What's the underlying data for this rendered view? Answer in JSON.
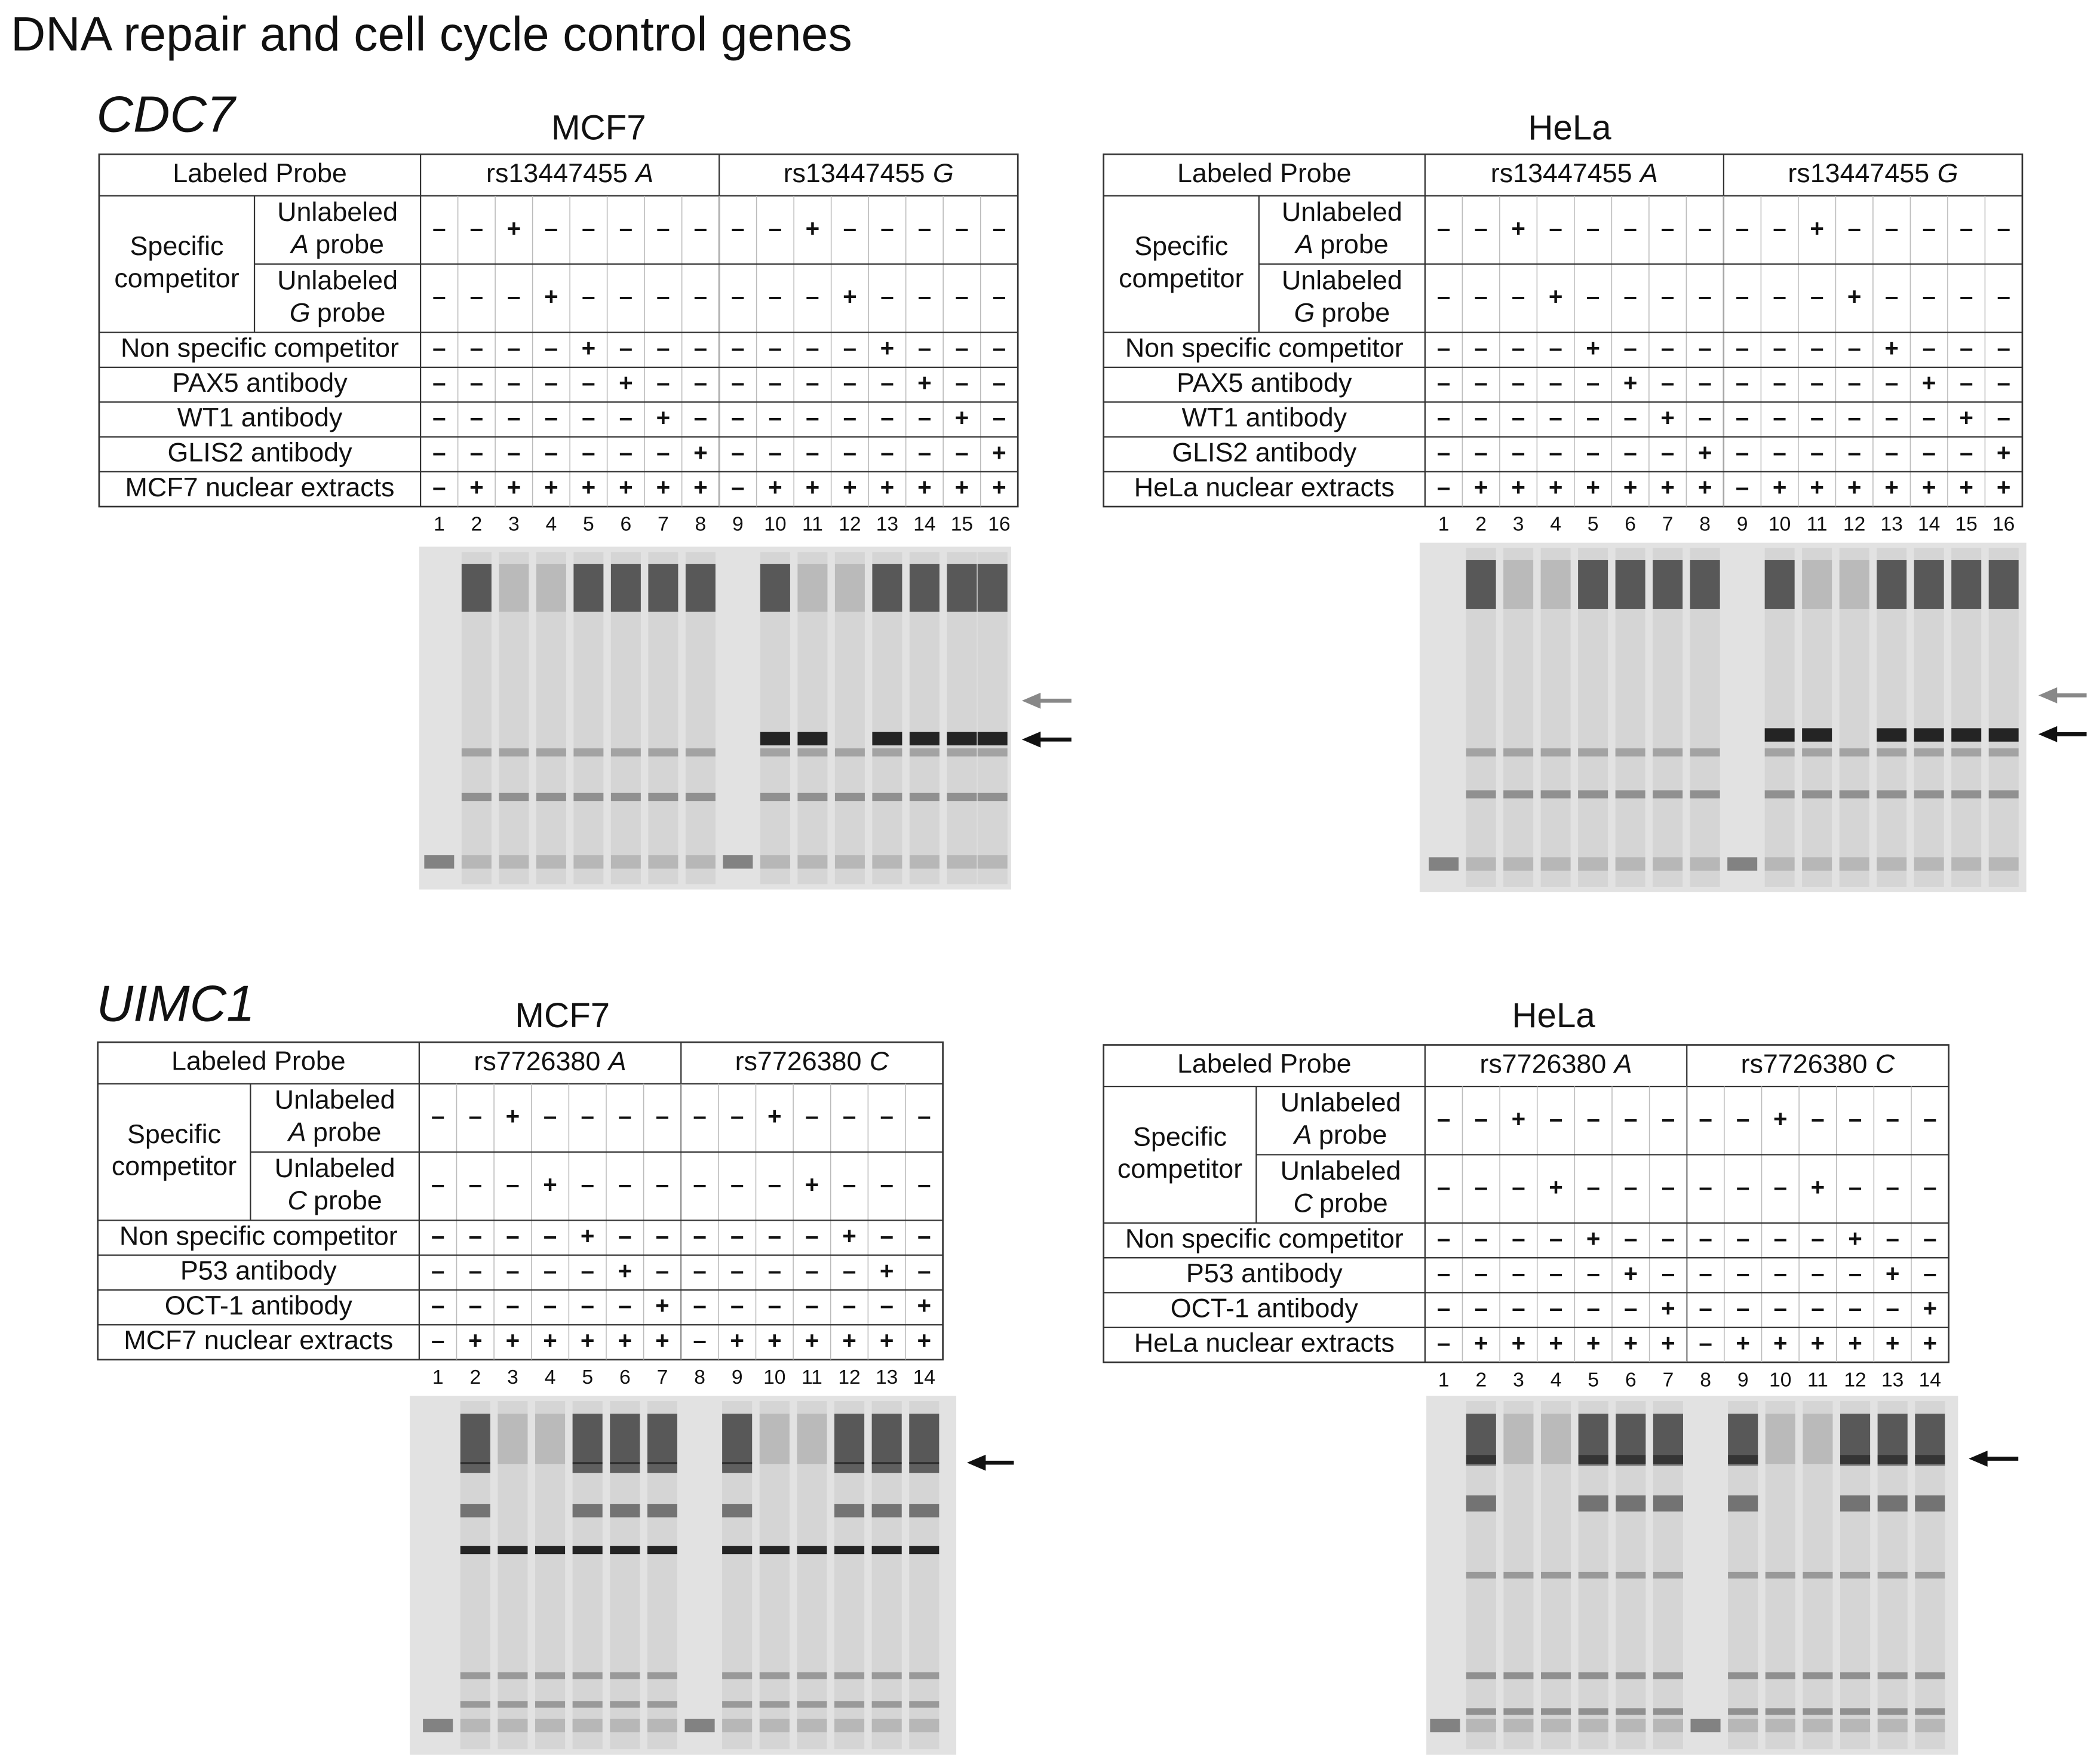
{
  "title": "DNA repair and cell cycle control genes",
  "genes": [
    {
      "name": "CDC7",
      "panels": [
        {
          "cell_line": "MCF7",
          "header": {
            "label": "Labeled Probe",
            "probes": [
              {
                "snp": "rs13447455",
                "allele": "A"
              },
              {
                "snp": "rs13447455",
                "allele": "G"
              }
            ]
          },
          "competitor_group": [
            "Specific",
            "competitor"
          ],
          "competitor_rows": [
            {
              "label": "Unlabeled",
              "allele": "A",
              "suffix": "probe",
              "signs": [
                "–",
                "–",
                "+",
                "–",
                "–",
                "–",
                "–",
                "–",
                "–",
                "–",
                "+",
                "–",
                "–",
                "–",
                "–",
                "–"
              ]
            },
            {
              "label": "Unlabeled",
              "allele": "G",
              "suffix": "probe",
              "signs": [
                "–",
                "–",
                "–",
                "+",
                "–",
                "–",
                "–",
                "–",
                "–",
                "–",
                "–",
                "+",
                "–",
                "–",
                "–",
                "–"
              ]
            }
          ],
          "rows": [
            {
              "label": "Non specific competitor",
              "signs": [
                "–",
                "–",
                "–",
                "–",
                "+",
                "–",
                "–",
                "–",
                "–",
                "–",
                "–",
                "–",
                "+",
                "–",
                "–",
                "–"
              ]
            },
            {
              "label": "PAX5 antibody",
              "signs": [
                "–",
                "–",
                "–",
                "–",
                "–",
                "+",
                "–",
                "–",
                "–",
                "–",
                "–",
                "–",
                "–",
                "+",
                "–",
                "–"
              ]
            },
            {
              "label": "WT1 antibody",
              "signs": [
                "–",
                "–",
                "–",
                "–",
                "–",
                "–",
                "+",
                "–",
                "–",
                "–",
                "–",
                "–",
                "–",
                "–",
                "+",
                "–"
              ]
            },
            {
              "label": "GLIS2 antibody",
              "signs": [
                "–",
                "–",
                "–",
                "–",
                "–",
                "–",
                "–",
                "+",
                "–",
                "–",
                "–",
                "–",
                "–",
                "–",
                "–",
                "+"
              ]
            },
            {
              "label": "MCF7 nuclear extracts",
              "signs": [
                "–",
                "+",
                "+",
                "+",
                "+",
                "+",
                "+",
                "+",
                "–",
                "+",
                "+",
                "+",
                "+",
                "+",
                "+",
                "+"
              ]
            }
          ],
          "lanes": [
            1,
            2,
            3,
            4,
            5,
            6,
            7,
            8,
            9,
            10,
            11,
            12,
            13,
            14,
            15,
            16
          ]
        },
        {
          "cell_line": "HeLa",
          "header": {
            "label": "Labeled Probe",
            "probes": [
              {
                "snp": "rs13447455",
                "allele": "A"
              },
              {
                "snp": "rs13447455",
                "allele": "G"
              }
            ]
          },
          "competitor_group": [
            "Specific",
            "competitor"
          ],
          "competitor_rows": [
            {
              "label": "Unlabeled",
              "allele": "A",
              "suffix": "probe",
              "signs": [
                "–",
                "–",
                "+",
                "–",
                "–",
                "–",
                "–",
                "–",
                "–",
                "–",
                "+",
                "–",
                "–",
                "–",
                "–",
                "–"
              ]
            },
            {
              "label": "Unlabeled",
              "allele": "G",
              "suffix": "probe",
              "signs": [
                "–",
                "–",
                "–",
                "+",
                "–",
                "–",
                "–",
                "–",
                "–",
                "–",
                "–",
                "+",
                "–",
                "–",
                "–",
                "–"
              ]
            }
          ],
          "rows": [
            {
              "label": "Non specific competitor",
              "signs": [
                "–",
                "–",
                "–",
                "–",
                "+",
                "–",
                "–",
                "–",
                "–",
                "–",
                "–",
                "–",
                "+",
                "–",
                "–",
                "–"
              ]
            },
            {
              "label": "PAX5 antibody",
              "signs": [
                "–",
                "–",
                "–",
                "–",
                "–",
                "+",
                "–",
                "–",
                "–",
                "–",
                "–",
                "–",
                "–",
                "+",
                "–",
                "–"
              ]
            },
            {
              "label": "WT1 antibody",
              "signs": [
                "–",
                "–",
                "–",
                "–",
                "–",
                "–",
                "+",
                "–",
                "–",
                "–",
                "–",
                "–",
                "–",
                "–",
                "+",
                "–"
              ]
            },
            {
              "label": "GLIS2 antibody",
              "signs": [
                "–",
                "–",
                "–",
                "–",
                "–",
                "–",
                "–",
                "+",
                "–",
                "–",
                "–",
                "–",
                "–",
                "–",
                "–",
                "+"
              ]
            },
            {
              "label": "HeLa nuclear extracts",
              "signs": [
                "–",
                "+",
                "+",
                "+",
                "+",
                "+",
                "+",
                "+",
                "–",
                "+",
                "+",
                "+",
                "+",
                "+",
                "+",
                "+"
              ]
            }
          ],
          "lanes": [
            1,
            2,
            3,
            4,
            5,
            6,
            7,
            8,
            9,
            10,
            11,
            12,
            13,
            14,
            15,
            16
          ]
        }
      ]
    },
    {
      "name": "UIMC1",
      "panels": [
        {
          "cell_line": "MCF7",
          "header": {
            "label": "Labeled Probe",
            "probes": [
              {
                "snp": "rs7726380",
                "allele": "A"
              },
              {
                "snp": "rs7726380",
                "allele": "C"
              }
            ]
          },
          "competitor_group": [
            "Specific",
            "competitor"
          ],
          "competitor_rows": [
            {
              "label": "Unlabeled",
              "allele": "A",
              "suffix": "probe",
              "signs": [
                "–",
                "–",
                "+",
                "–",
                "–",
                "–",
                "–",
                "–",
                "–",
                "+",
                "–",
                "–",
                "–",
                "–"
              ]
            },
            {
              "label": "Unlabeled",
              "allele": "C",
              "suffix": "probe",
              "signs": [
                "–",
                "–",
                "–",
                "+",
                "–",
                "–",
                "–",
                "–",
                "–",
                "–",
                "+",
                "–",
                "–",
                "–"
              ]
            }
          ],
          "rows": [
            {
              "label": "Non specific competitor",
              "signs": [
                "–",
                "–",
                "–",
                "–",
                "+",
                "–",
                "–",
                "–",
                "–",
                "–",
                "–",
                "+",
                "–",
                "–"
              ]
            },
            {
              "label": "P53 antibody",
              "signs": [
                "–",
                "–",
                "–",
                "–",
                "–",
                "+",
                "–",
                "–",
                "–",
                "–",
                "–",
                "–",
                "+",
                "–"
              ]
            },
            {
              "label": "OCT-1 antibody",
              "signs": [
                "–",
                "–",
                "–",
                "–",
                "–",
                "–",
                "+",
                "–",
                "–",
                "–",
                "–",
                "–",
                "–",
                "+"
              ]
            },
            {
              "label": "MCF7 nuclear extracts",
              "signs": [
                "–",
                "+",
                "+",
                "+",
                "+",
                "+",
                "+",
                "–",
                "+",
                "+",
                "+",
                "+",
                "+",
                "+"
              ]
            }
          ],
          "lanes": [
            1,
            2,
            3,
            4,
            5,
            6,
            7,
            8,
            9,
            10,
            11,
            12,
            13,
            14
          ]
        },
        {
          "cell_line": "HeLa",
          "header": {
            "label": "Labeled Probe",
            "probes": [
              {
                "snp": "rs7726380",
                "allele": "A"
              },
              {
                "snp": "rs7726380",
                "allele": "C"
              }
            ]
          },
          "competitor_group": [
            "Specific",
            "competitor"
          ],
          "competitor_rows": [
            {
              "label": "Unlabeled",
              "allele": "A",
              "suffix": "probe",
              "signs": [
                "–",
                "–",
                "+",
                "–",
                "–",
                "–",
                "–",
                "–",
                "–",
                "+",
                "–",
                "–",
                "–",
                "–"
              ]
            },
            {
              "label": "Unlabeled",
              "allele": "C",
              "suffix": "probe",
              "signs": [
                "–",
                "–",
                "–",
                "+",
                "–",
                "–",
                "–",
                "–",
                "–",
                "–",
                "+",
                "–",
                "–",
                "–"
              ]
            }
          ],
          "rows": [
            {
              "label": "Non specific competitor",
              "signs": [
                "–",
                "–",
                "–",
                "–",
                "+",
                "–",
                "–",
                "–",
                "–",
                "–",
                "–",
                "+",
                "–",
                "–"
              ]
            },
            {
              "label": "P53 antibody",
              "signs": [
                "–",
                "–",
                "–",
                "–",
                "–",
                "+",
                "–",
                "–",
                "–",
                "–",
                "–",
                "–",
                "+",
                "–"
              ]
            },
            {
              "label": "OCT-1 antibody",
              "signs": [
                "–",
                "–",
                "–",
                "–",
                "–",
                "–",
                "+",
                "–",
                "–",
                "–",
                "–",
                "–",
                "–",
                "+"
              ]
            },
            {
              "label": "HeLa nuclear extracts",
              "signs": [
                "–",
                "+",
                "+",
                "+",
                "+",
                "+",
                "+",
                "–",
                "+",
                "+",
                "+",
                "+",
                "+",
                "+"
              ]
            }
          ],
          "lanes": [
            1,
            2,
            3,
            4,
            5,
            6,
            7,
            8,
            9,
            10,
            11,
            12,
            13,
            14
          ]
        }
      ]
    }
  ]
}
